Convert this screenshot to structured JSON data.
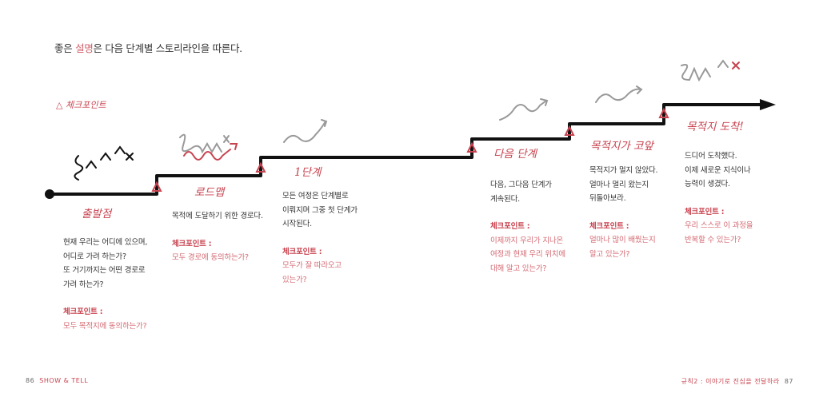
{
  "title": {
    "before": "좋은 ",
    "highlight": "설명",
    "after": "은 다음 단계별 스토리라인을 따른다."
  },
  "legend": {
    "icon": "triangle-icon",
    "label": "체크포인트"
  },
  "colors": {
    "accent": "#c8434f",
    "line": "#111111",
    "doodle": "#9a9a9a"
  },
  "stages": [
    {
      "label": "출발점",
      "text": [
        "현재 우리는 어디에 있으며,",
        "어디로 가려 하는가?",
        "또 거기까지는 어떤 경로로",
        "가려 하는가?"
      ],
      "checkpoint_label": "체크포인트 :",
      "checkpoint": [
        "모두 목적지에 동의하는가?"
      ]
    },
    {
      "label": "로드맵",
      "text": [
        "목적에 도달하기 위한 경로다."
      ],
      "checkpoint_label": "체크포인트 :",
      "checkpoint": [
        "모두 경로에 동의하는가?"
      ]
    },
    {
      "label": "1단계",
      "text": [
        "모든 여정은 단계별로",
        "이뤄지며 그중 첫 단계가",
        "시작된다."
      ],
      "checkpoint_label": "체크포인트 :",
      "checkpoint": [
        "모두가 잘 따라오고",
        "있는가?"
      ]
    },
    {
      "label": "다음 단계",
      "text": [
        "다음, 그다음 단계가",
        "계속된다."
      ],
      "checkpoint_label": "체크포인트 :",
      "checkpoint": [
        "이제까지 우리가 지나온",
        "여정과 현재 우리 위치에",
        "대해 알고 있는가?"
      ]
    },
    {
      "label": "목적지가 코앞",
      "text": [
        "목적지가 멀지 않았다.",
        "얼마나 멀리 왔는지",
        "뒤돌아보라."
      ],
      "checkpoint_label": "체크포인트 :",
      "checkpoint": [
        "얼마나 많이 배웠는지",
        "알고 있는가?"
      ]
    },
    {
      "label": "목적지 도착!",
      "text": [
        "드디어 도착했다.",
        "이제 새로운 지식이나",
        "능력이 생겼다."
      ],
      "checkpoint_label": "체크포인트 :",
      "checkpoint": [
        "우리 스스로 이 과정을",
        "반복할 수 있는가?"
      ]
    }
  ],
  "footer": {
    "left_page": "86",
    "left_title": "SHOW & TELL",
    "right_title": "규칙2 : 이야기로 진심을 전달하라",
    "right_page": "87"
  }
}
